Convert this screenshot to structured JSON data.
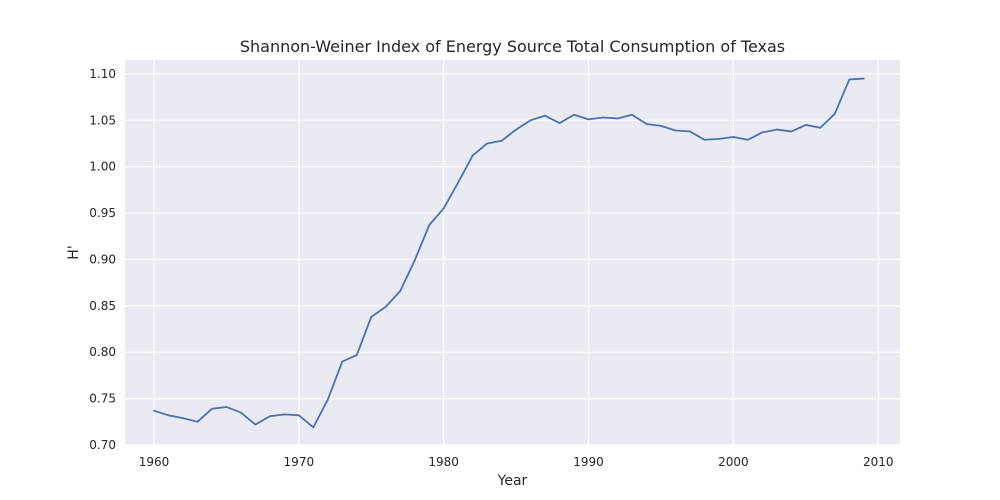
{
  "chart_data": {
    "type": "line",
    "title": "Shannon-Weiner Index of Energy Source Total Consumption of Texas",
    "xlabel": "Year",
    "ylabel": "H'",
    "xlim": [
      1958,
      2011.5
    ],
    "ylim": [
      0.7,
      1.115
    ],
    "xticks": [
      1960,
      1970,
      1980,
      1990,
      2000,
      2010
    ],
    "yticks": [
      0.7,
      0.75,
      0.8,
      0.85,
      0.9,
      0.95,
      1.0,
      1.05,
      1.1
    ],
    "ytick_labels": [
      "0.70",
      "0.75",
      "0.80",
      "0.85",
      "0.90",
      "0.95",
      "1.00",
      "1.05",
      "1.10"
    ],
    "grid": true,
    "series": [
      {
        "color": "#4c72b0",
        "x": [
          1960,
          1961,
          1962,
          1963,
          1964,
          1965,
          1966,
          1967,
          1968,
          1969,
          1970,
          1971,
          1972,
          1973,
          1974,
          1975,
          1976,
          1977,
          1978,
          1979,
          1980,
          1981,
          1982,
          1983,
          1984,
          1985,
          1986,
          1987,
          1988,
          1989,
          1990,
          1991,
          1992,
          1993,
          1994,
          1995,
          1996,
          1997,
          1998,
          1999,
          2000,
          2001,
          2002,
          2003,
          2004,
          2005,
          2006,
          2007,
          2008,
          2009
        ],
        "values": [
          0.737,
          0.732,
          0.729,
          0.725,
          0.739,
          0.741,
          0.735,
          0.722,
          0.731,
          0.733,
          0.732,
          0.719,
          0.749,
          0.79,
          0.797,
          0.838,
          0.849,
          0.866,
          0.899,
          0.937,
          0.955,
          0.983,
          1.012,
          1.025,
          1.028,
          1.04,
          1.05,
          1.055,
          1.047,
          1.056,
          1.051,
          1.053,
          1.052,
          1.056,
          1.046,
          1.044,
          1.039,
          1.038,
          1.029,
          1.03,
          1.032,
          1.029,
          1.037,
          1.04,
          1.038,
          1.045,
          1.042,
          1.057,
          1.094,
          1.095
        ]
      }
    ]
  },
  "colors": {
    "plot_background": "#eaeaf2",
    "grid": "#ffffff",
    "line": "#4c72b0"
  }
}
